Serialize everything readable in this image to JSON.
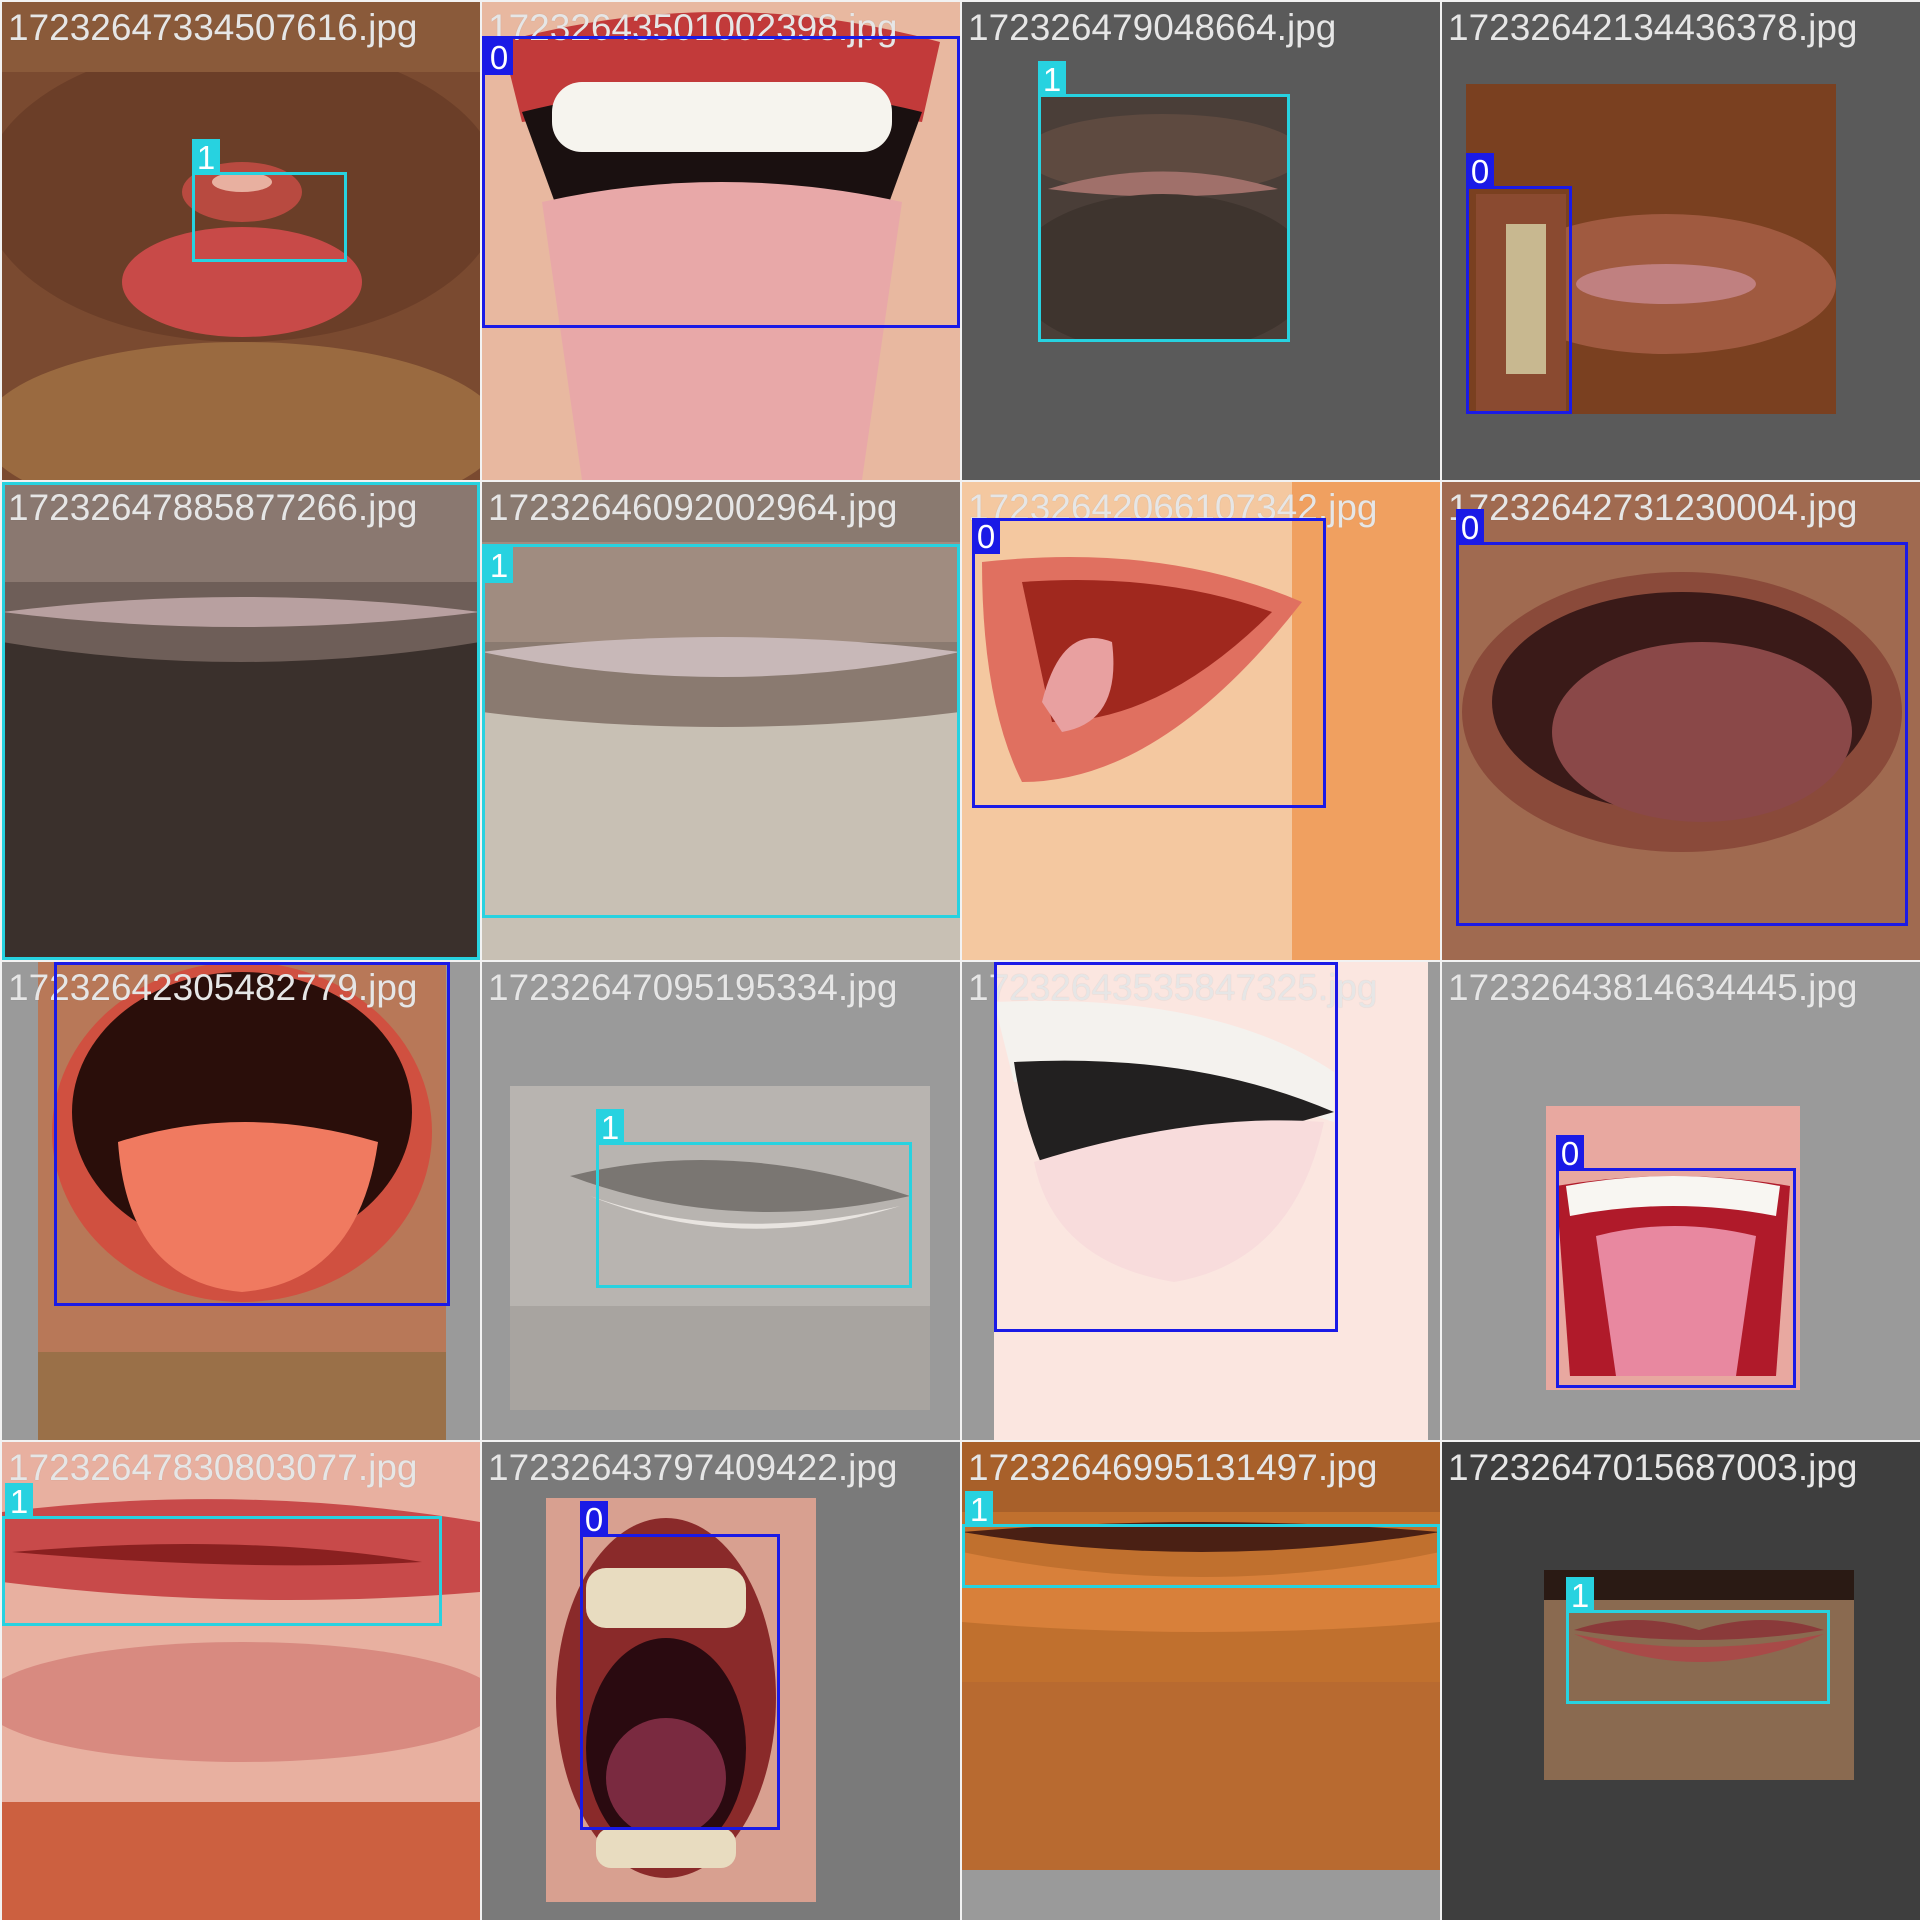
{
  "colors": {
    "class_0": "#1a1ae6",
    "class_1": "#27d2e0"
  },
  "tiles": [
    {
      "filename": "17232647334507616.jpg",
      "labels": [
        "1"
      ]
    },
    {
      "filename": "17232643501002398.jpg",
      "labels": [
        "0"
      ]
    },
    {
      "filename": "172326479048664.jpg",
      "labels": [
        "1"
      ]
    },
    {
      "filename": "17232642134436378.jpg",
      "labels": [
        "0"
      ]
    },
    {
      "filename": "17232647885877266.jpg",
      "labels": [
        "1"
      ]
    },
    {
      "filename": "17232646092002964.jpg",
      "labels": [
        "1"
      ]
    },
    {
      "filename": "17232642066107342.jpg",
      "labels": [
        "0"
      ]
    },
    {
      "filename": "17232642731230004.jpg",
      "labels": [
        "0"
      ]
    },
    {
      "filename": "17232642305482779.jpg",
      "labels": [
        "0"
      ]
    },
    {
      "filename": "17232647095195334.jpg",
      "labels": [
        "1"
      ]
    },
    {
      "filename": "17232643535847325.jpg",
      "labels": [
        "0"
      ]
    },
    {
      "filename": "17232643814634445.jpg",
      "labels": [
        "0"
      ]
    },
    {
      "filename": "17232647830803077.jpg",
      "labels": [
        "1"
      ]
    },
    {
      "filename": "17232643797409422.jpg",
      "labels": [
        "0"
      ]
    },
    {
      "filename": "17232646995131497.jpg",
      "labels": [
        "1"
      ]
    },
    {
      "filename": "17232647015687003.jpg",
      "labels": [
        "1"
      ]
    }
  ]
}
